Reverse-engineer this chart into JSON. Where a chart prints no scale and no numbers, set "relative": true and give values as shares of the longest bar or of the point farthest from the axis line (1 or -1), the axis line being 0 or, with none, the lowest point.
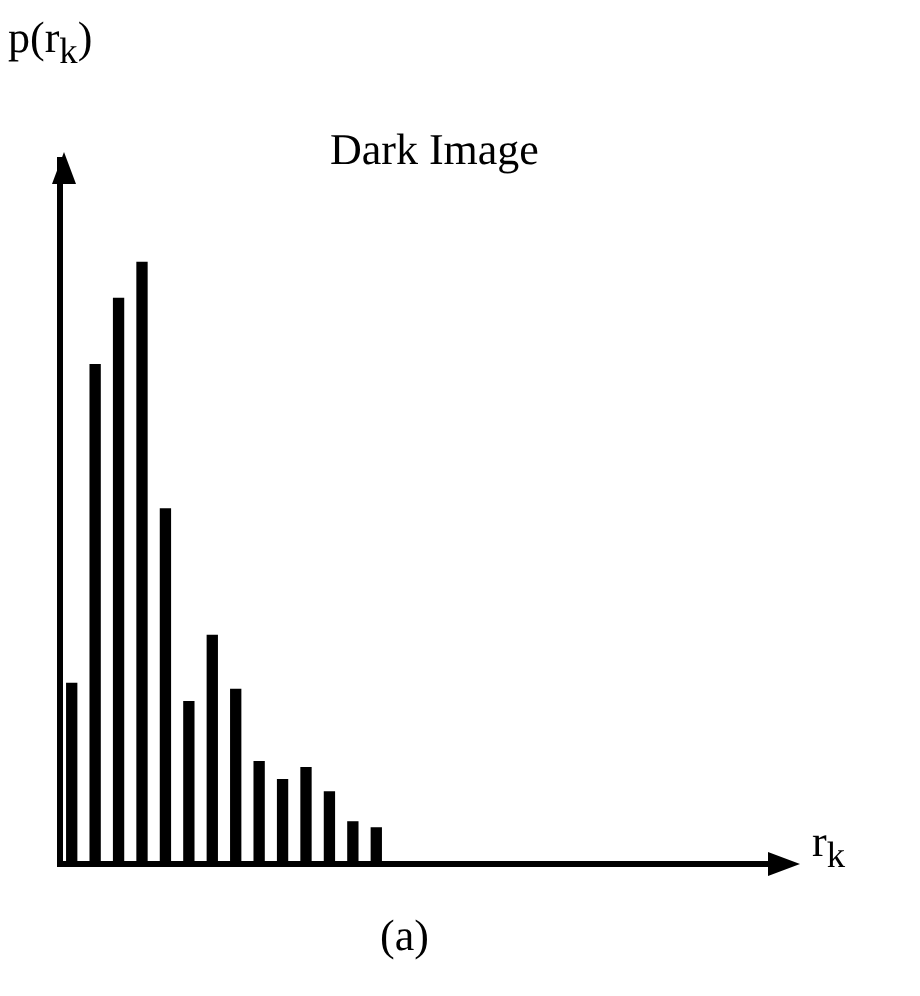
{
  "chart_data": {
    "type": "bar",
    "title": "Dark Image",
    "ylabel": "p(r$_{k}$)",
    "categories": [
      null,
      null,
      null,
      null,
      null,
      null,
      null,
      null,
      null,
      null,
      null,
      null,
      null,
      null
    ],
    "values": [
      0.3,
      0.83,
      0.94,
      1,
      0.59,
      0.27,
      0.38,
      0.29,
      0.17,
      0.14,
      0.16,
      0.12,
      0.07,
      0.06
    ],
    "color": "#000000",
    "relative": true,
    "annotations": [
      "r$_{k}$",
      "(a)"
    ]
  }
}
